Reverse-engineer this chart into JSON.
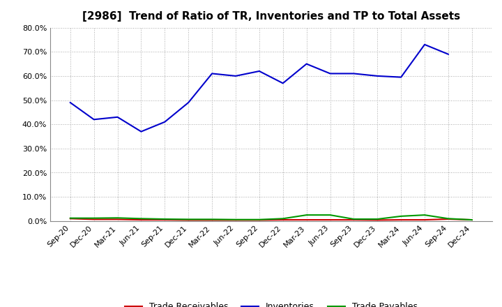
{
  "title": "[2986]  Trend of Ratio of TR, Inventories and TP to Total Assets",
  "x_labels": [
    "Sep-20",
    "Dec-20",
    "Mar-21",
    "Jun-21",
    "Sep-21",
    "Dec-21",
    "Mar-22",
    "Jun-22",
    "Sep-22",
    "Dec-22",
    "Mar-23",
    "Jun-23",
    "Sep-23",
    "Dec-23",
    "Mar-24",
    "Jun-24",
    "Sep-24",
    "Dec-24"
  ],
  "trade_receivables": [
    0.01,
    0.007,
    0.007,
    0.005,
    0.005,
    0.004,
    0.004,
    0.004,
    0.004,
    0.005,
    0.005,
    0.005,
    0.005,
    0.004,
    0.005,
    0.005,
    0.008,
    0.005
  ],
  "inventories": [
    0.49,
    0.42,
    0.43,
    0.37,
    0.41,
    0.49,
    0.61,
    0.6,
    0.62,
    0.57,
    0.65,
    0.61,
    0.61,
    0.6,
    0.595,
    0.73,
    0.69,
    null
  ],
  "trade_payables": [
    0.012,
    0.012,
    0.013,
    0.01,
    0.008,
    0.007,
    0.007,
    0.006,
    0.006,
    0.01,
    0.025,
    0.025,
    0.008,
    0.008,
    0.02,
    0.025,
    0.01,
    0.005
  ],
  "line_colors": {
    "trade_receivables": "#cc0000",
    "inventories": "#0000cc",
    "trade_payables": "#009900"
  },
  "ylim": [
    0.0,
    0.8
  ],
  "yticks": [
    0.0,
    0.1,
    0.2,
    0.3,
    0.4,
    0.5,
    0.6,
    0.7,
    0.8
  ],
  "legend_labels": [
    "Trade Receivables",
    "Inventories",
    "Trade Payables"
  ],
  "background_color": "#ffffff",
  "grid_color": "#aaaaaa",
  "title_fontsize": 11,
  "tick_fontsize": 8,
  "legend_fontsize": 9
}
